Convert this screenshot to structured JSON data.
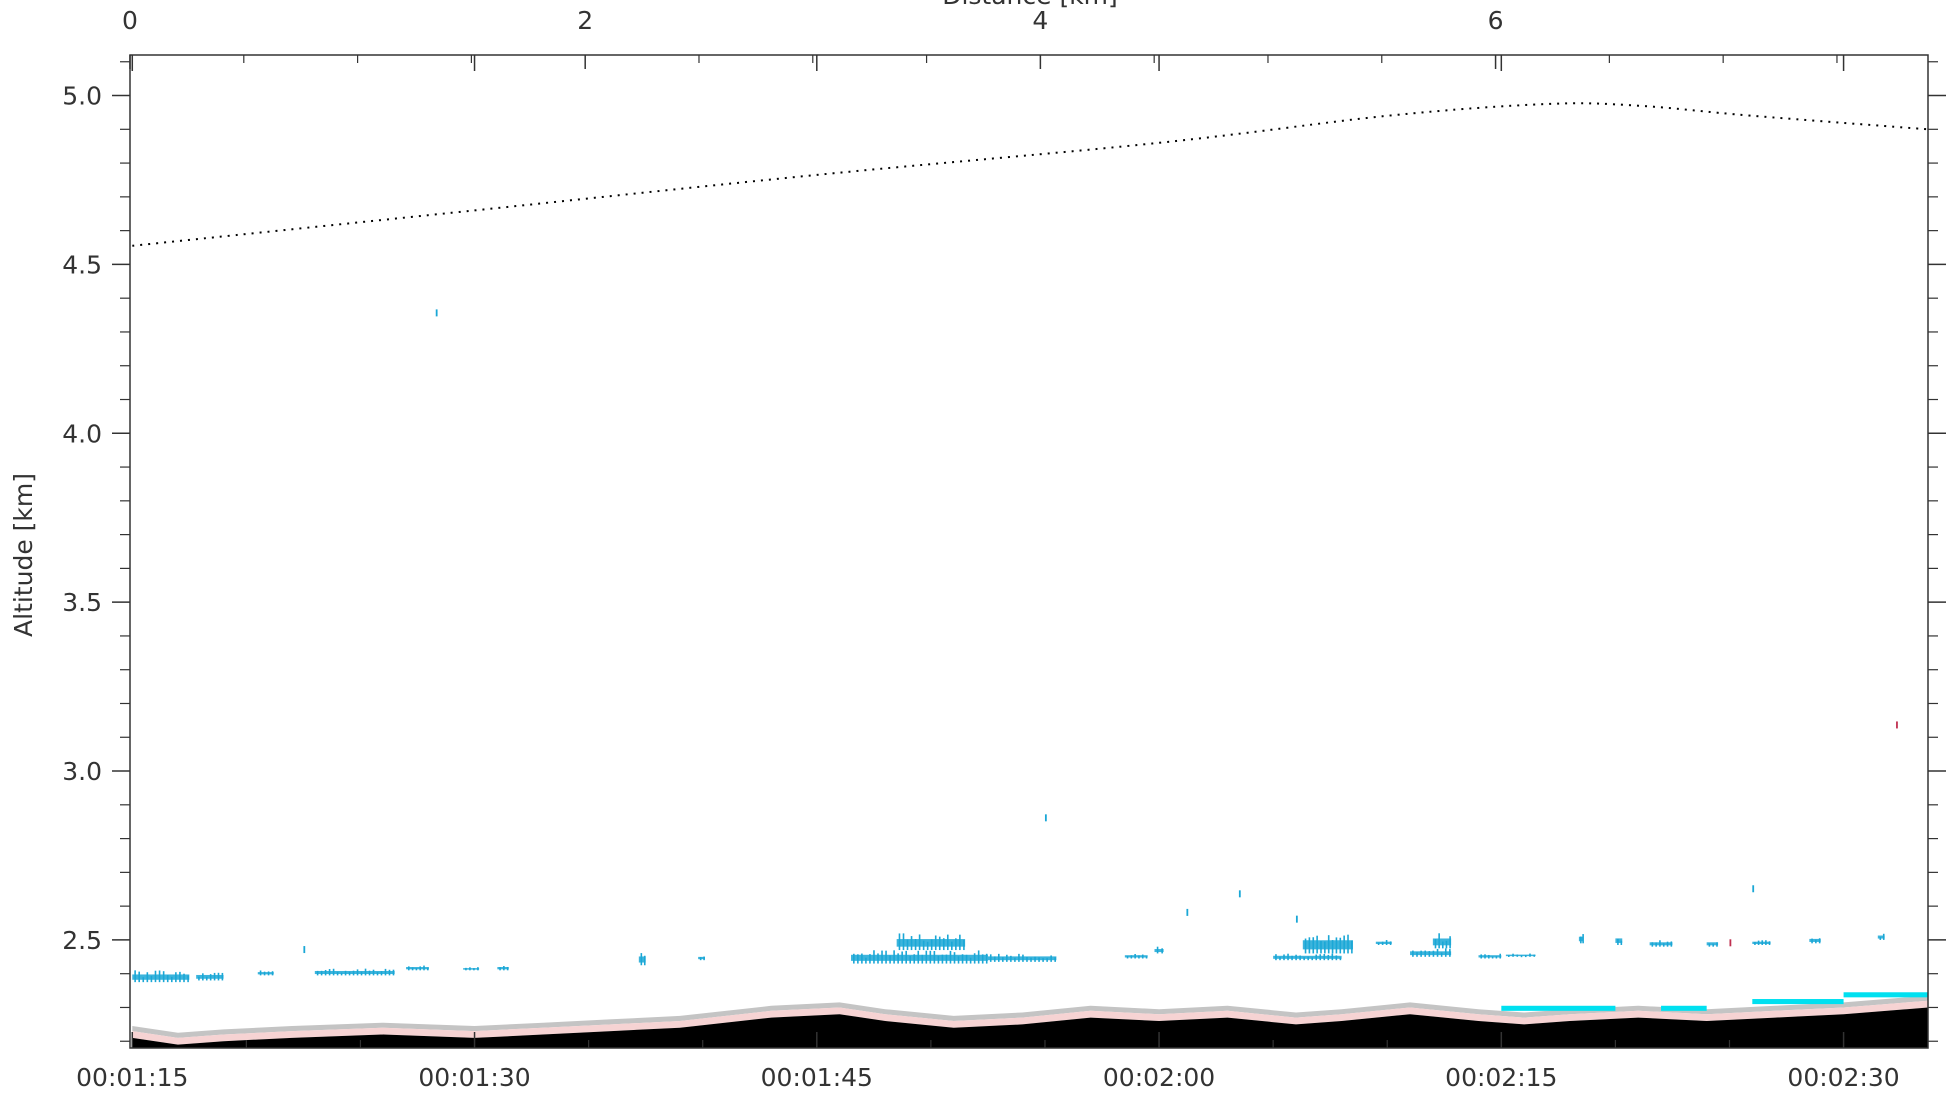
{
  "chart_data": {
    "type": "heatmap",
    "title": "",
    "xlabel": "",
    "ylabel": "Altitude  [km]",
    "x2label": "Distance  [km]",
    "x_time_range_seconds": [
      74.9,
      153.7
    ],
    "x_ticks": [
      {
        "value": 75,
        "label": "00:01:15"
      },
      {
        "value": 90,
        "label": "00:01:30"
      },
      {
        "value": 105,
        "label": "00:01:45"
      },
      {
        "value": 120,
        "label": "00:02:00"
      },
      {
        "value": 135,
        "label": "00:02:15"
      },
      {
        "value": 150,
        "label": "00:02:30"
      }
    ],
    "x2_range_km": [
      0,
      7.9
    ],
    "x2_ticks": [
      {
        "value": 0,
        "label": "0"
      },
      {
        "value": 2,
        "label": "2"
      },
      {
        "value": 4,
        "label": "4"
      },
      {
        "value": 6,
        "label": "6"
      }
    ],
    "ylim": [
      2.18,
      5.12
    ],
    "y_ticks": [
      {
        "value": 2.5,
        "label": "2.5"
      },
      {
        "value": 3.0,
        "label": "3.0"
      },
      {
        "value": 3.5,
        "label": "3.5"
      },
      {
        "value": 4.0,
        "label": "4.0"
      },
      {
        "value": 4.5,
        "label": "4.5"
      },
      {
        "value": 5.0,
        "label": "5.0"
      }
    ],
    "flight_altitude_dotted": {
      "style": "dotted",
      "color": "#000000",
      "points": [
        [
          75,
          4.555
        ],
        [
          90,
          4.66
        ],
        [
          105,
          4.765
        ],
        [
          120,
          4.86
        ],
        [
          130,
          4.94
        ],
        [
          137,
          4.975
        ],
        [
          141,
          4.97
        ],
        [
          146,
          4.94
        ],
        [
          153.7,
          4.9
        ]
      ]
    },
    "ground_surface_top": {
      "color": "#000000",
      "points": [
        [
          75,
          2.21
        ],
        [
          76,
          2.2
        ],
        [
          77,
          2.19
        ],
        [
          79,
          2.2
        ],
        [
          82,
          2.21
        ],
        [
          86,
          2.22
        ],
        [
          90,
          2.21
        ],
        [
          93,
          2.22
        ],
        [
          96,
          2.23
        ],
        [
          99,
          2.24
        ],
        [
          103,
          2.27
        ],
        [
          106,
          2.28
        ],
        [
          108,
          2.26
        ],
        [
          111,
          2.24
        ],
        [
          114,
          2.25
        ],
        [
          117,
          2.27
        ],
        [
          120,
          2.26
        ],
        [
          123,
          2.27
        ],
        [
          126,
          2.25
        ],
        [
          128,
          2.26
        ],
        [
          131,
          2.28
        ],
        [
          134,
          2.26
        ],
        [
          136,
          2.25
        ],
        [
          138,
          2.26
        ],
        [
          141,
          2.27
        ],
        [
          144,
          2.26
        ],
        [
          147,
          2.27
        ],
        [
          150,
          2.28
        ],
        [
          153.7,
          2.3
        ]
      ]
    },
    "near_surface_layers": [
      {
        "color": "#f6d3d3",
        "thickness_km": 0.02
      },
      {
        "color": "#c4c4c4",
        "thickness_km": 0.015
      }
    ],
    "surface_cyan_segments": {
      "color": "#00e0f0",
      "ranges": [
        [
          135,
          140
        ],
        [
          142,
          144
        ],
        [
          146,
          150
        ],
        [
          150,
          153.7
        ]
      ]
    },
    "cloud_patches": {
      "color": "#1aa7d6",
      "patches": [
        {
          "x0": 75.0,
          "x1": 77.5,
          "y0": 2.375,
          "y1": 2.41
        },
        {
          "x0": 77.8,
          "x1": 79.0,
          "y0": 2.38,
          "y1": 2.405
        },
        {
          "x0": 80.5,
          "x1": 81.2,
          "y0": 2.395,
          "y1": 2.41
        },
        {
          "x0": 83.0,
          "x1": 86.5,
          "y0": 2.395,
          "y1": 2.415
        },
        {
          "x0": 87.0,
          "x1": 88.0,
          "y0": 2.41,
          "y1": 2.425
        },
        {
          "x0": 89.5,
          "x1": 90.2,
          "y0": 2.41,
          "y1": 2.42
        },
        {
          "x0": 91.0,
          "x1": 91.5,
          "y0": 2.41,
          "y1": 2.425
        },
        {
          "x0": 97.2,
          "x1": 97.5,
          "y0": 2.425,
          "y1": 2.465
        },
        {
          "x0": 99.8,
          "x1": 100.1,
          "y0": 2.44,
          "y1": 2.455
        },
        {
          "x0": 106.5,
          "x1": 112.5,
          "y0": 2.43,
          "y1": 2.47
        },
        {
          "x0": 108.5,
          "x1": 111.5,
          "y0": 2.47,
          "y1": 2.52
        },
        {
          "x0": 112.5,
          "x1": 115.5,
          "y0": 2.435,
          "y1": 2.46
        },
        {
          "x0": 118.5,
          "x1": 119.5,
          "y0": 2.445,
          "y1": 2.46
        },
        {
          "x0": 119.8,
          "x1": 120.2,
          "y0": 2.46,
          "y1": 2.48
        },
        {
          "x0": 125.0,
          "x1": 128.0,
          "y0": 2.44,
          "y1": 2.46
        },
        {
          "x0": 126.3,
          "x1": 128.5,
          "y0": 2.46,
          "y1": 2.52
        },
        {
          "x0": 129.5,
          "x1": 130.2,
          "y0": 2.485,
          "y1": 2.5
        },
        {
          "x0": 131.0,
          "x1": 132.8,
          "y0": 2.45,
          "y1": 2.475
        },
        {
          "x0": 132.0,
          "x1": 132.8,
          "y0": 2.475,
          "y1": 2.52
        },
        {
          "x0": 134.0,
          "x1": 135.0,
          "y0": 2.445,
          "y1": 2.46
        },
        {
          "x0": 135.2,
          "x1": 136.5,
          "y0": 2.45,
          "y1": 2.46
        },
        {
          "x0": 138.4,
          "x1": 138.6,
          "y0": 2.49,
          "y1": 2.52
        },
        {
          "x0": 140.0,
          "x1": 140.3,
          "y0": 2.485,
          "y1": 2.515
        },
        {
          "x0": 141.5,
          "x1": 142.5,
          "y0": 2.48,
          "y1": 2.5
        },
        {
          "x0": 144.0,
          "x1": 144.5,
          "y0": 2.48,
          "y1": 2.5
        },
        {
          "x0": 146.0,
          "x1": 146.8,
          "y0": 2.485,
          "y1": 2.5
        },
        {
          "x0": 148.5,
          "x1": 149.0,
          "y0": 2.49,
          "y1": 2.51
        },
        {
          "x0": 151.5,
          "x1": 151.8,
          "y0": 2.5,
          "y1": 2.52
        }
      ],
      "specks": [
        {
          "x": 88.3,
          "y": 4.355
        },
        {
          "x": 115.0,
          "y": 2.86
        },
        {
          "x": 121.2,
          "y": 2.58
        },
        {
          "x": 123.5,
          "y": 2.635
        },
        {
          "x": 146.0,
          "y": 2.65
        },
        {
          "x": 82.5,
          "y": 2.47
        },
        {
          "x": 126.0,
          "y": 2.56
        }
      ]
    },
    "red_specks": {
      "color": "#c03050",
      "points": [
        [
          152.3,
          3.135
        ],
        [
          145.0,
          2.49
        ]
      ]
    }
  }
}
